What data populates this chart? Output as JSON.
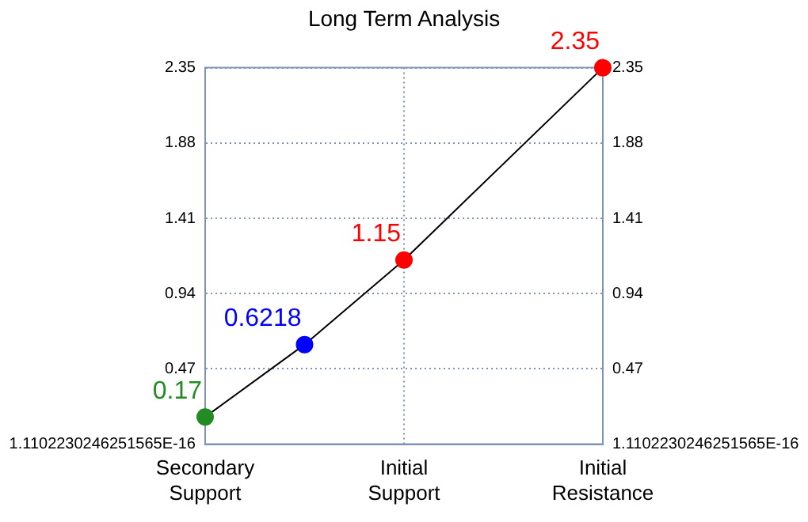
{
  "chart_data": {
    "type": "line",
    "title": "Long Term Analysis",
    "categories": [
      "Secondary Support",
      null,
      "Initial Support",
      null,
      "Initial Resistance"
    ],
    "ylim": [
      0,
      2.35
    ],
    "yticks": [
      {
        "value": 0,
        "label": "1.1102230246251565E-16"
      },
      0.47,
      0.94,
      1.41,
      1.88,
      2.35
    ],
    "y2lim": [
      0,
      2.35
    ],
    "y2ticks": [
      {
        "value": 0,
        "label": "1.1102230246251565E-16"
      },
      0.47,
      0.94,
      1.41,
      1.88,
      2.35
    ],
    "series": [
      {
        "color": "#000000",
        "colors": [
          "#228b22",
          "#0000ff",
          "#ff0000",
          null,
          "#ff0000"
        ],
        "values": [
          0.17,
          0.6218,
          1.15,
          null,
          2.35
        ]
      }
    ],
    "data_labels": true,
    "marker": "circle",
    "line_style": "solid",
    "grid": true,
    "legend": false
  }
}
